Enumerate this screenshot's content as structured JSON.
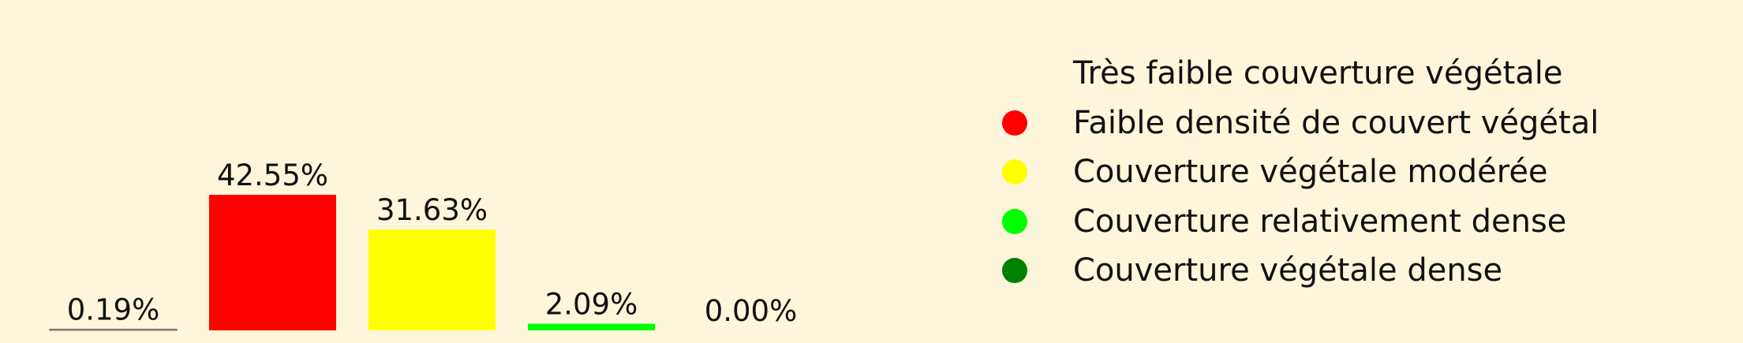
{
  "chart_data": {
    "type": "bar",
    "categories": [
      "Très faible couverture végétale",
      "Faible densité de couvert végétal",
      "Couverture végétale modérée",
      "Couverture relativement dense",
      "Couverture végétale dense"
    ],
    "values": [
      0.19,
      42.55,
      31.63,
      2.09,
      0.0
    ],
    "value_labels": [
      "0.19%",
      "42.55%",
      "31.63%",
      "2.09%",
      "0.00%"
    ],
    "colors": [
      "#fdf6da",
      "#ff0000",
      "#ffff00",
      "#00ff00",
      "#008000"
    ],
    "edge_colors": [
      "#555555",
      "",
      "",
      "",
      ""
    ],
    "ylim": [
      0,
      50
    ],
    "legend_position": "right",
    "grid": false,
    "axes_visible": false
  }
}
